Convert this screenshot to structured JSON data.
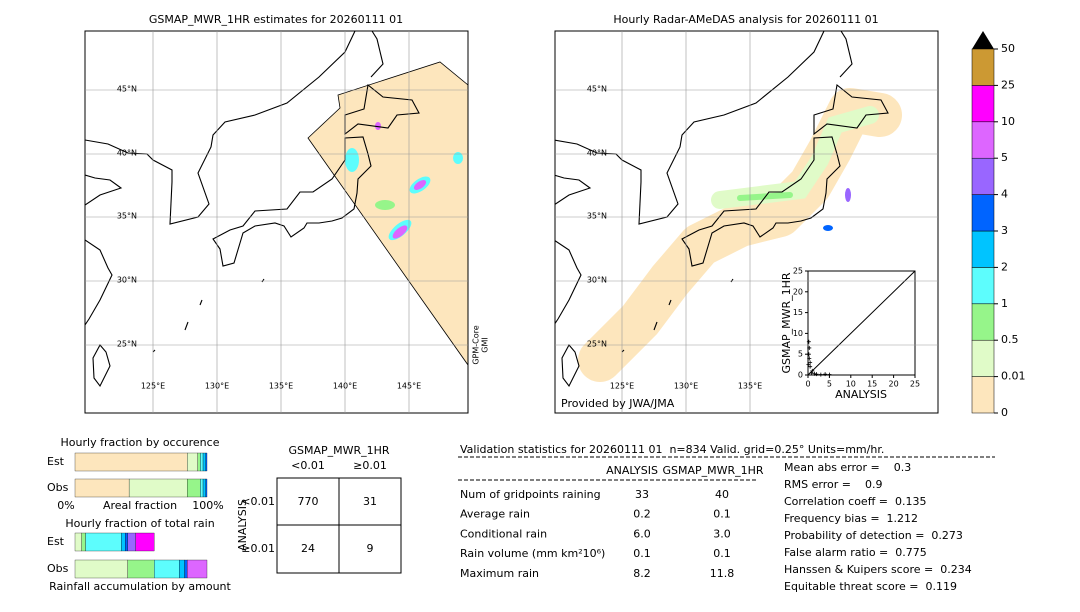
{
  "left_map": {
    "title": "GSMAP_MWR_1HR estimates for 20260111 01",
    "lat_labels": [
      "45°N",
      "40°N",
      "35°N",
      "30°N",
      "25°N"
    ],
    "lon_labels": [
      "125°E",
      "130°E",
      "135°E",
      "140°E",
      "145°E"
    ],
    "swath_label": [
      "GPM-Core",
      "GMI"
    ]
  },
  "right_map": {
    "title": "Hourly Radar-AMeDAS analysis for 20260111 01",
    "lat_labels": [
      "45°N",
      "40°N",
      "35°N",
      "30°N",
      "25°N"
    ],
    "lon_labels": [
      "125°E",
      "130°E",
      "135°E"
    ],
    "credit": "Provided by JWA/JMA"
  },
  "colorbar": {
    "levels": [
      0,
      0.01,
      0.5,
      1,
      2,
      3,
      4,
      5,
      10,
      25,
      50
    ],
    "colors": [
      "#fde6bd",
      "#e0fbc8",
      "#96f58a",
      "#5dfdfd",
      "#00c4ff",
      "#0064ff",
      "#9966ff",
      "#dd66ff",
      "#ff00ff",
      "#cc9933"
    ],
    "extend_color": "#000000"
  },
  "scatter": {
    "type": "scatter",
    "x": [
      0,
      0.2,
      0.3,
      0.5,
      1,
      0.2,
      0.5,
      2,
      3,
      4,
      5,
      0.1,
      0.8,
      0.3,
      1.5
    ],
    "y": [
      0,
      5,
      4,
      2,
      1,
      8,
      3,
      0.2,
      0.1,
      0.2,
      0.1,
      2.5,
      0.5,
      6.5,
      0.3
    ],
    "xlim": [
      0,
      25
    ],
    "ylim": [
      0,
      25
    ],
    "xticks": [
      0,
      5,
      10,
      15,
      20,
      25
    ],
    "yticks": [
      0,
      5,
      10,
      15,
      20,
      25
    ],
    "xlabel": "ANALYSIS",
    "ylabel": "GSMAP_MWR_1HR"
  },
  "occurrence": {
    "title": "Hourly fraction by occurence",
    "rows": [
      {
        "name": "Est",
        "values": [
          0.85,
          0.08,
          0.02,
          0.02,
          0.02,
          0.01
        ],
        "colors": [
          "#fde6bd",
          "#e0fbc8",
          "#96f58a",
          "#5dfdfd",
          "#00c4ff",
          "#0064ff"
        ]
      },
      {
        "name": "Obs",
        "values": [
          0.41,
          0.44,
          0.1,
          0.02,
          0.02,
          0.01
        ],
        "colors": [
          "#fde6bd",
          "#e0fbc8",
          "#96f58a",
          "#5dfdfd",
          "#00c4ff",
          "#0064ff"
        ]
      }
    ],
    "xtick_labels": [
      "0%",
      "100%"
    ],
    "xlabel": "Areal fraction"
  },
  "total_rain": {
    "title": "Hourly fraction of total rain",
    "rows": [
      {
        "name": "Est",
        "values": [
          0.05,
          0.03,
          0.27,
          0.03,
          0.02,
          0.06,
          0.14
        ],
        "colors": [
          "#e0fbc8",
          "#96f58a",
          "#5dfdfd",
          "#00c4ff",
          "#0064ff",
          "#9966ff",
          "#ff00ff"
        ]
      },
      {
        "name": "Obs",
        "values": [
          0.4,
          0.2,
          0.19,
          0.04,
          0.02,
          0.15
        ],
        "colors": [
          "#e0fbc8",
          "#96f58a",
          "#5dfdfd",
          "#00c4ff",
          "#0064ff",
          "#dd66ff"
        ]
      }
    ],
    "xlabel": "Rainfall accumulation by amount"
  },
  "contingency": {
    "title": "GSMAP_MWR_1HR",
    "col_labels": [
      "<0.01",
      "≥0.01"
    ],
    "row_title": "ANALYSIS",
    "row_labels": [
      "<0.01",
      "≥0.01"
    ],
    "cells": [
      [
        770,
        31
      ],
      [
        24,
        9
      ]
    ]
  },
  "validation": {
    "header": "Validation statistics for 20260111 01  n=834 Valid. grid=0.25° Units=mm/hr.",
    "columns": [
      "ANALYSIS",
      "GSMAP_MWR_1HR"
    ],
    "rows": [
      {
        "label": "Num of gridpoints raining",
        "values": [
          "33",
          "40"
        ]
      },
      {
        "label": "Average rain",
        "values": [
          "0.2",
          "0.1"
        ]
      },
      {
        "label": "Conditional rain",
        "values": [
          "6.0",
          "3.0"
        ]
      },
      {
        "label": "Rain volume (mm km²10⁶)",
        "values": [
          "0.1",
          "0.1"
        ]
      },
      {
        "label": "Maximum rain",
        "values": [
          "8.2",
          "11.8"
        ]
      }
    ],
    "scores": [
      "Mean abs error =    0.3",
      "RMS error =    0.9",
      "Correlation coeff =  0.135",
      "Frequency bias =  1.212",
      "Probability of detection =  0.273",
      "False alarm ratio =  0.775",
      "Hanssen & Kuipers score =  0.234",
      "Equitable threat score =  0.119"
    ]
  }
}
